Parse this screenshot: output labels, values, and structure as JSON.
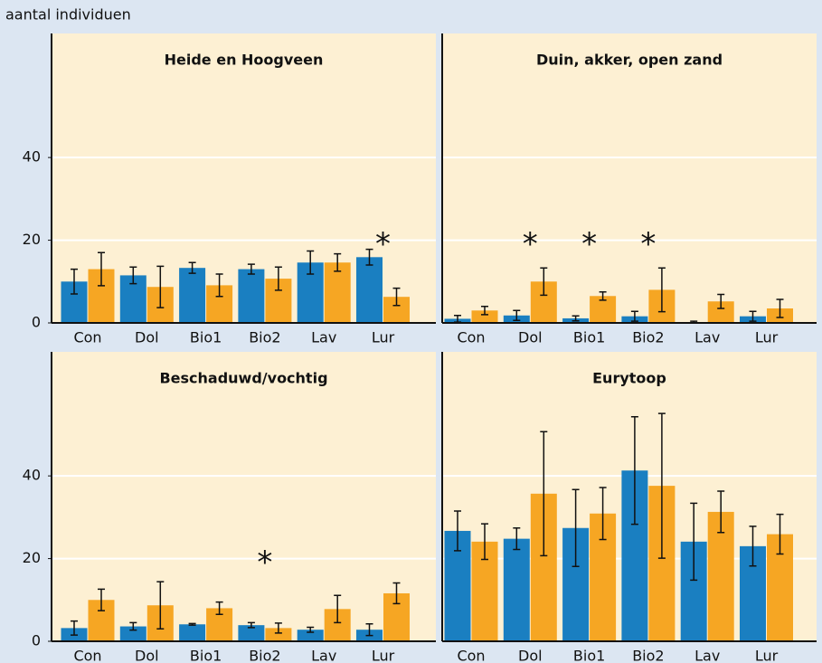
{
  "chart_data": [
    {
      "type": "bar",
      "title": "Heide en Hoogveen",
      "ylabel": "aantal individuen",
      "categories": [
        "Con",
        "Dol",
        "Bio1",
        "Bio2",
        "Lav",
        "Lur"
      ],
      "series": [
        {
          "color": "#1a7fc1",
          "values": [
            10,
            11.5,
            13.3,
            13,
            14.6,
            15.9
          ],
          "errors": [
            3,
            2,
            1.3,
            1.2,
            2.8,
            1.9
          ]
        },
        {
          "color": "#f6a623",
          "values": [
            13,
            8.7,
            9.1,
            10.7,
            14.6,
            6.3
          ],
          "errors": [
            4,
            5,
            2.7,
            2.8,
            2.1,
            2.1
          ]
        }
      ],
      "annotations": [
        {
          "text": "*",
          "category": "Lur"
        }
      ],
      "ylim": [
        0,
        70
      ],
      "yticks": [
        0,
        20,
        40
      ],
      "grid": true
    },
    {
      "type": "bar",
      "title": "Duin, akker, open zand",
      "categories": [
        "Con",
        "Dol",
        "Bio1",
        "Bio2",
        "Lav",
        "Lur"
      ],
      "series": [
        {
          "color": "#1a7fc1",
          "values": [
            1,
            1.8,
            1.1,
            1.6,
            0.2,
            1.6
          ],
          "errors": [
            0.8,
            1.2,
            0.6,
            1.2,
            0.2,
            1.2
          ]
        },
        {
          "color": "#f6a623",
          "values": [
            3,
            10,
            6.5,
            8,
            5.2,
            3.5
          ],
          "errors": [
            1,
            3.3,
            1,
            5.3,
            1.7,
            2.2
          ]
        }
      ],
      "annotations": [
        {
          "text": "*",
          "category": "Dol"
        },
        {
          "text": "*",
          "category": "Bio1"
        },
        {
          "text": "*",
          "category": "Bio2"
        }
      ],
      "ylim": [
        0,
        70
      ],
      "yticks": [
        0,
        20,
        40
      ],
      "grid": true
    },
    {
      "type": "bar",
      "title": "Beschaduwd/vochtig",
      "categories": [
        "Con",
        "Dol",
        "Bio1",
        "Bio2",
        "Lav",
        "Lur"
      ],
      "series": [
        {
          "color": "#1a7fc1",
          "values": [
            3.2,
            3.6,
            4.1,
            3.9,
            2.8,
            2.8
          ],
          "errors": [
            1.7,
            0.9,
            0.2,
            0.6,
            0.6,
            1.4
          ]
        },
        {
          "color": "#f6a623",
          "values": [
            10,
            8.7,
            8,
            3.2,
            7.8,
            11.6
          ],
          "errors": [
            2.6,
            5.7,
            1.5,
            1.2,
            3.3,
            2.5
          ]
        }
      ],
      "annotations": [
        {
          "text": "*",
          "category": "Bio2"
        }
      ],
      "ylim": [
        0,
        70
      ],
      "yticks": [
        0,
        20,
        40
      ],
      "grid": true
    },
    {
      "type": "bar",
      "title": "Eurytoop",
      "categories": [
        "Con",
        "Dol",
        "Bio1",
        "Bio2",
        "Lav",
        "Lur"
      ],
      "series": [
        {
          "color": "#1a7fc1",
          "values": [
            26.7,
            24.8,
            27.4,
            41.3,
            24.1,
            23
          ],
          "errors": [
            4.8,
            2.6,
            9.3,
            13,
            9.3,
            4.8
          ]
        },
        {
          "color": "#f6a623",
          "values": [
            24.1,
            35.7,
            30.9,
            37.6,
            31.3,
            25.9
          ],
          "errors": [
            4.3,
            15,
            6.3,
            17.5,
            5,
            4.8
          ]
        }
      ],
      "ylim": [
        0,
        70
      ],
      "yticks": [
        0,
        20,
        40
      ],
      "grid": true
    }
  ]
}
